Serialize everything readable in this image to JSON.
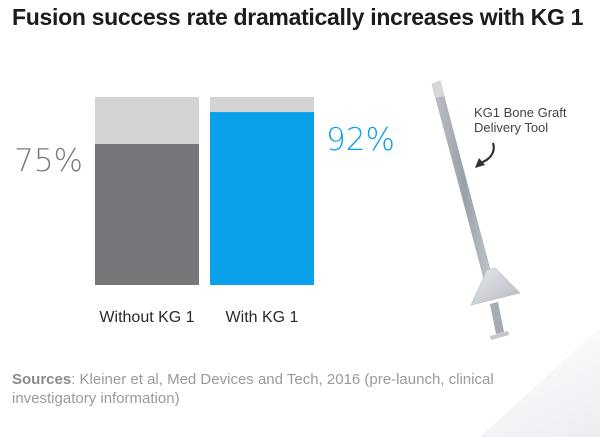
{
  "title": "Fusion success rate dramatically increases with KG 1",
  "chart_data": {
    "type": "bar",
    "stacked_to": 100,
    "categories": [
      "Without KG 1",
      "With KG 1"
    ],
    "values": [
      75,
      92
    ],
    "value_labels": [
      "75%",
      "92%"
    ],
    "unit": "%",
    "ylim": [
      0,
      100
    ],
    "grid": false,
    "colors": {
      "without_fill": "#76777a",
      "with_fill": "#0ba1ea",
      "remainder": "#d4d4d4",
      "without_label": "#7a7a7a",
      "with_label": "#0ba1ea"
    }
  },
  "annotation": {
    "line1": "KG1 Bone Graft",
    "line2": "Delivery Tool"
  },
  "sources": {
    "label": "Sources",
    "text": ": Kleiner et al, Med Devices and Tech, 2016 (pre-launch, clinical investigatory information)"
  }
}
